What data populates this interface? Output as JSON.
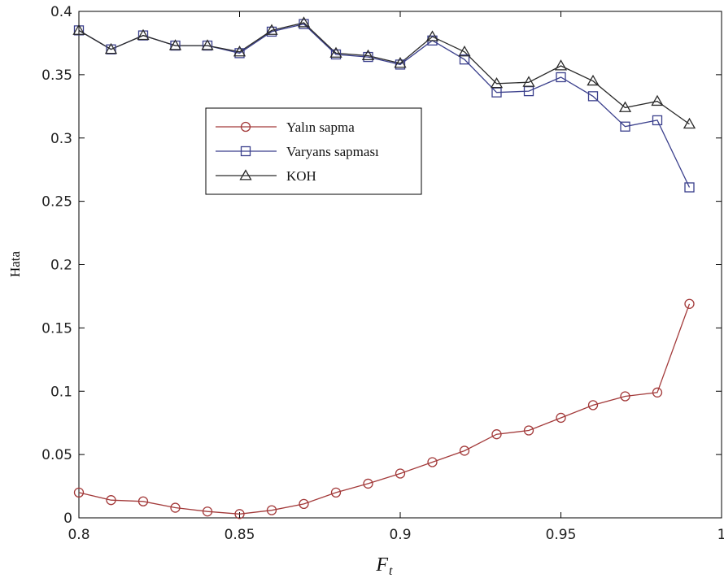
{
  "chart_data": {
    "type": "line",
    "title": "",
    "xlabel": "F",
    "xlabel_subscript": "t",
    "ylabel": "Hata",
    "xlim": [
      0.8,
      1.0
    ],
    "ylim": [
      0,
      0.4
    ],
    "x_ticks": [
      0.8,
      0.85,
      0.9,
      0.95,
      1.0
    ],
    "x_tick_labels": [
      "0.8",
      "0.85",
      "0.9",
      "0.95",
      "1"
    ],
    "y_ticks": [
      0,
      0.05,
      0.1,
      0.15,
      0.2,
      0.25,
      0.3,
      0.35,
      0.4
    ],
    "y_tick_labels": [
      "0",
      "0.05",
      "0.1",
      "0.15",
      "0.2",
      "0.25",
      "0.3",
      "0.35",
      "0.4"
    ],
    "grid": false,
    "legend_position": "upper-left-inside",
    "x": [
      0.8,
      0.81,
      0.82,
      0.83,
      0.84,
      0.85,
      0.86,
      0.87,
      0.88,
      0.89,
      0.9,
      0.91,
      0.92,
      0.93,
      0.94,
      0.95,
      0.96,
      0.97,
      0.98,
      0.99
    ],
    "series": [
      {
        "name": "Yalın sapma",
        "color": "#a33a3a",
        "marker": "circle",
        "values": [
          0.02,
          0.014,
          0.013,
          0.008,
          0.005,
          0.003,
          0.006,
          0.011,
          0.02,
          0.027,
          0.035,
          0.044,
          0.053,
          0.066,
          0.069,
          0.079,
          0.089,
          0.096,
          0.099,
          0.169
        ]
      },
      {
        "name": "Varyans sapması",
        "color": "#3a3f8c",
        "marker": "square",
        "values": [
          0.385,
          0.37,
          0.381,
          0.373,
          0.373,
          0.367,
          0.384,
          0.39,
          0.366,
          0.364,
          0.358,
          0.377,
          0.362,
          0.336,
          0.337,
          0.348,
          0.333,
          0.309,
          0.314,
          0.261
        ]
      },
      {
        "name": "KOH",
        "color": "#2a2a2a",
        "marker": "triangle",
        "values": [
          0.385,
          0.37,
          0.381,
          0.373,
          0.373,
          0.368,
          0.385,
          0.391,
          0.367,
          0.365,
          0.359,
          0.38,
          0.368,
          0.343,
          0.344,
          0.357,
          0.345,
          0.324,
          0.329,
          0.311
        ]
      }
    ]
  }
}
